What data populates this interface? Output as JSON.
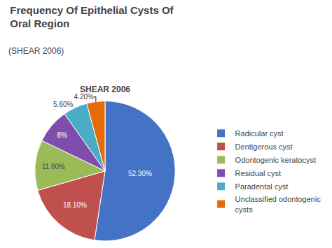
{
  "chart_data": {
    "type": "pie",
    "title": "Frequency Of Epithelial Cysts Of\nOral Region",
    "subtitle": "(SHEAR 2006)",
    "annotations": [
      "SHEAR 2006"
    ],
    "categories": [
      "Radicular cyst",
      "Dentigerous cyst",
      "Odontogenic keratocyst",
      "Residual cyst",
      "Paradental cyst",
      "Unclassified odontogenic\ncysts"
    ],
    "values": [
      52.3,
      18.1,
      11.6,
      8.0,
      5.6,
      4.2
    ],
    "value_labels": [
      "52.30%",
      "18.10%",
      "11.60%",
      "8%",
      "5.60%",
      "4.20%"
    ],
    "colors": [
      "#4472C4",
      "#C0504D",
      "#9BBB59",
      "#7F4EAD",
      "#4BACC6",
      "#E36C09"
    ],
    "data_labels": true,
    "legend": "right"
  }
}
